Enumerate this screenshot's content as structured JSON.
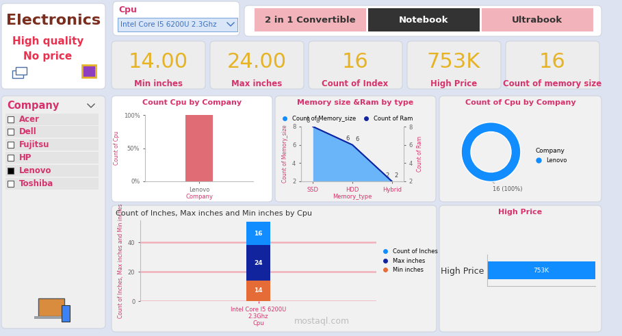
{
  "header": {
    "title": "Electronics",
    "lines": [
      "High quality",
      "No price"
    ]
  },
  "cpu_slicer": {
    "label": "Cpu",
    "value": "Intel Core I5 6200U 2.3Ghz"
  },
  "type_buttons": {
    "items": [
      "2 in 1 Convertible",
      "Notebook",
      "Ultrabook"
    ],
    "selected": "Notebook"
  },
  "cards": [
    {
      "value": "14.00",
      "label": "Min inches"
    },
    {
      "value": "24.00",
      "label": "Max inches"
    },
    {
      "value": "16",
      "label": "Count of Index"
    },
    {
      "value": "753K",
      "label": "High Price"
    },
    {
      "value": "16",
      "label": "Count of memory size"
    }
  ],
  "company_slicer": {
    "label": "Company",
    "items": [
      "Acer",
      "Dell",
      "Fujitsu",
      "HP",
      "Lenovo",
      "Toshiba"
    ],
    "selected": "Lenovo"
  },
  "watermark": "mostaql.com",
  "chart_data": [
    {
      "type": "bar",
      "title": "Count Cpu by Company",
      "x_label": "Company",
      "y_label": "Count of Cpu",
      "categories": [
        "Lenovo"
      ],
      "values": [
        100
      ],
      "color": "#E06C75",
      "ylim": [
        0,
        100
      ],
      "yticks": [
        {
          "value": 0,
          "label": "0%"
        },
        {
          "value": 50,
          "label": "50%"
        },
        {
          "value": 100,
          "label": "100%"
        }
      ]
    },
    {
      "type": "area",
      "title": "Memory size &Ram by type",
      "x_label": "Memory_type",
      "y_label": "Count of Memory_size",
      "y2_label": "Count of Ram",
      "categories": [
        "SSD",
        "HDD",
        "Hybrid"
      ],
      "series": [
        {
          "name": "Count of Memory_size",
          "color": "#118DFF",
          "type": "area",
          "values": [
            8,
            6,
            2
          ]
        },
        {
          "name": "Count of Ram",
          "color": "#12239E",
          "type": "line",
          "axis": "y2",
          "values": [
            8,
            6,
            2
          ]
        }
      ],
      "ylim": [
        2,
        8
      ],
      "yticks": [
        2,
        4,
        6,
        8
      ],
      "y2lim": [
        2,
        8
      ],
      "y2ticks": [
        2,
        4,
        6,
        8
      ],
      "legend": "top",
      "data_labels": true
    },
    {
      "type": "donut",
      "title": "Count of Cpu by Company",
      "legend_title": "Company",
      "categories": [
        "Lenovo"
      ],
      "values": [
        16
      ],
      "value_labels": [
        "16 (100%)"
      ],
      "colors": [
        "#118DFF"
      ],
      "legend": "right",
      "data_labels": true
    },
    {
      "type": "bar",
      "stacked": true,
      "title": "Count of Inches, Max inches and Min inches by Cpu",
      "x_label": "Cpu",
      "y_label": "Count of Inches, Max inches and Min inches",
      "categories": [
        "Intel Core I5 6200U 2.3Ghz"
      ],
      "series": [
        {
          "name": "Count of Inches",
          "color": "#118DFF",
          "values": [
            16
          ]
        },
        {
          "name": "Max inches",
          "color": "#12239E",
          "values": [
            24
          ]
        },
        {
          "name": "Min inches",
          "color": "#E66C37",
          "values": [
            14
          ]
        }
      ],
      "ylim": [
        0,
        55
      ],
      "yticks": [
        0,
        20,
        40
      ],
      "grid": true,
      "legend": "right",
      "data_labels": true
    },
    {
      "type": "bar",
      "orientation": "horizontal",
      "title": "High Price",
      "categories": [
        "High Price"
      ],
      "values": [
        753000
      ],
      "value_labels": [
        "753K"
      ],
      "color": "#118DFF",
      "xlim": [
        0,
        753000
      ],
      "tick_labels": "y",
      "data_labels": true
    }
  ]
}
